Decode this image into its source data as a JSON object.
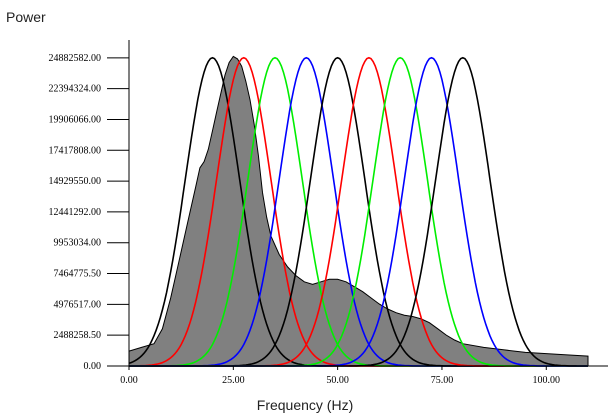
{
  "chart_data": {
    "type": "area",
    "title": "",
    "ylabel": "Power",
    "xlabel": "Frequency (Hz)",
    "xlim": [
      0,
      110
    ],
    "ylim": [
      0,
      26000000
    ],
    "x_ticks": [
      0,
      25,
      50,
      75,
      100
    ],
    "x_tick_labels": [
      "0.00",
      "25.00",
      "50.00",
      "75.00",
      "100.00"
    ],
    "y_ticks": [
      0,
      2488258.5,
      4976517,
      7464775.5,
      9953034,
      12441292,
      14929550,
      17417808,
      19906066,
      22394324,
      24882582
    ],
    "y_tick_labels": [
      "0.00",
      "2488258.50",
      "4976517.00",
      "7464775.50",
      "9953034.00",
      "12441292.00",
      "14929550.00",
      "17417808.00",
      "19906066.00",
      "22394324.00",
      "24882582.00"
    ],
    "grid": false,
    "spectrum": {
      "fill_color": "#808080",
      "x": [
        0,
        3,
        6,
        8,
        10,
        12,
        14,
        16,
        17,
        18,
        19,
        20,
        21,
        22,
        23,
        24,
        25,
        26,
        27,
        28,
        29,
        30,
        31,
        32,
        33,
        34,
        36,
        38,
        40,
        42,
        44,
        46,
        48,
        50,
        52,
        54,
        56,
        58,
        60,
        62,
        64,
        66,
        68,
        70,
        72,
        74,
        76,
        78,
        80,
        85,
        90,
        95,
        100,
        105,
        110
      ],
      "values": [
        1200000,
        1500000,
        1800000,
        3000000,
        5500000,
        8500000,
        11500000,
        14500000,
        16000000,
        16500000,
        17500000,
        19000000,
        20500000,
        22000000,
        23500000,
        24500000,
        25000000,
        24800000,
        24200000,
        23000000,
        21500000,
        19500000,
        17000000,
        14000000,
        12000000,
        10500000,
        9000000,
        8000000,
        7300000,
        6800000,
        6600000,
        6800000,
        7000000,
        7000000,
        6800000,
        6400000,
        6000000,
        5500000,
        5000000,
        4600000,
        4300000,
        4100000,
        4000000,
        3800000,
        3500000,
        3000000,
        2500000,
        2100000,
        1800000,
        1500000,
        1300000,
        1100000,
        1000000,
        900000,
        800000
      ]
    },
    "filters": [
      {
        "center": 20,
        "peak": 24882582,
        "sigma": 6.5,
        "color": "#000000"
      },
      {
        "center": 27.5,
        "peak": 24882582,
        "sigma": 6.5,
        "color": "#ff0000"
      },
      {
        "center": 35,
        "peak": 24882582,
        "sigma": 6.5,
        "color": "#00ee00"
      },
      {
        "center": 42.5,
        "peak": 24882582,
        "sigma": 6.5,
        "color": "#0000ff"
      },
      {
        "center": 50,
        "peak": 24882582,
        "sigma": 6.5,
        "color": "#000000"
      },
      {
        "center": 57.5,
        "peak": 24882582,
        "sigma": 6.5,
        "color": "#ff0000"
      },
      {
        "center": 65,
        "peak": 24882582,
        "sigma": 6.5,
        "color": "#00ee00"
      },
      {
        "center": 72.5,
        "peak": 24882582,
        "sigma": 6.5,
        "color": "#0000ff"
      },
      {
        "center": 80,
        "peak": 24882582,
        "sigma": 6.5,
        "color": "#000000"
      }
    ]
  }
}
